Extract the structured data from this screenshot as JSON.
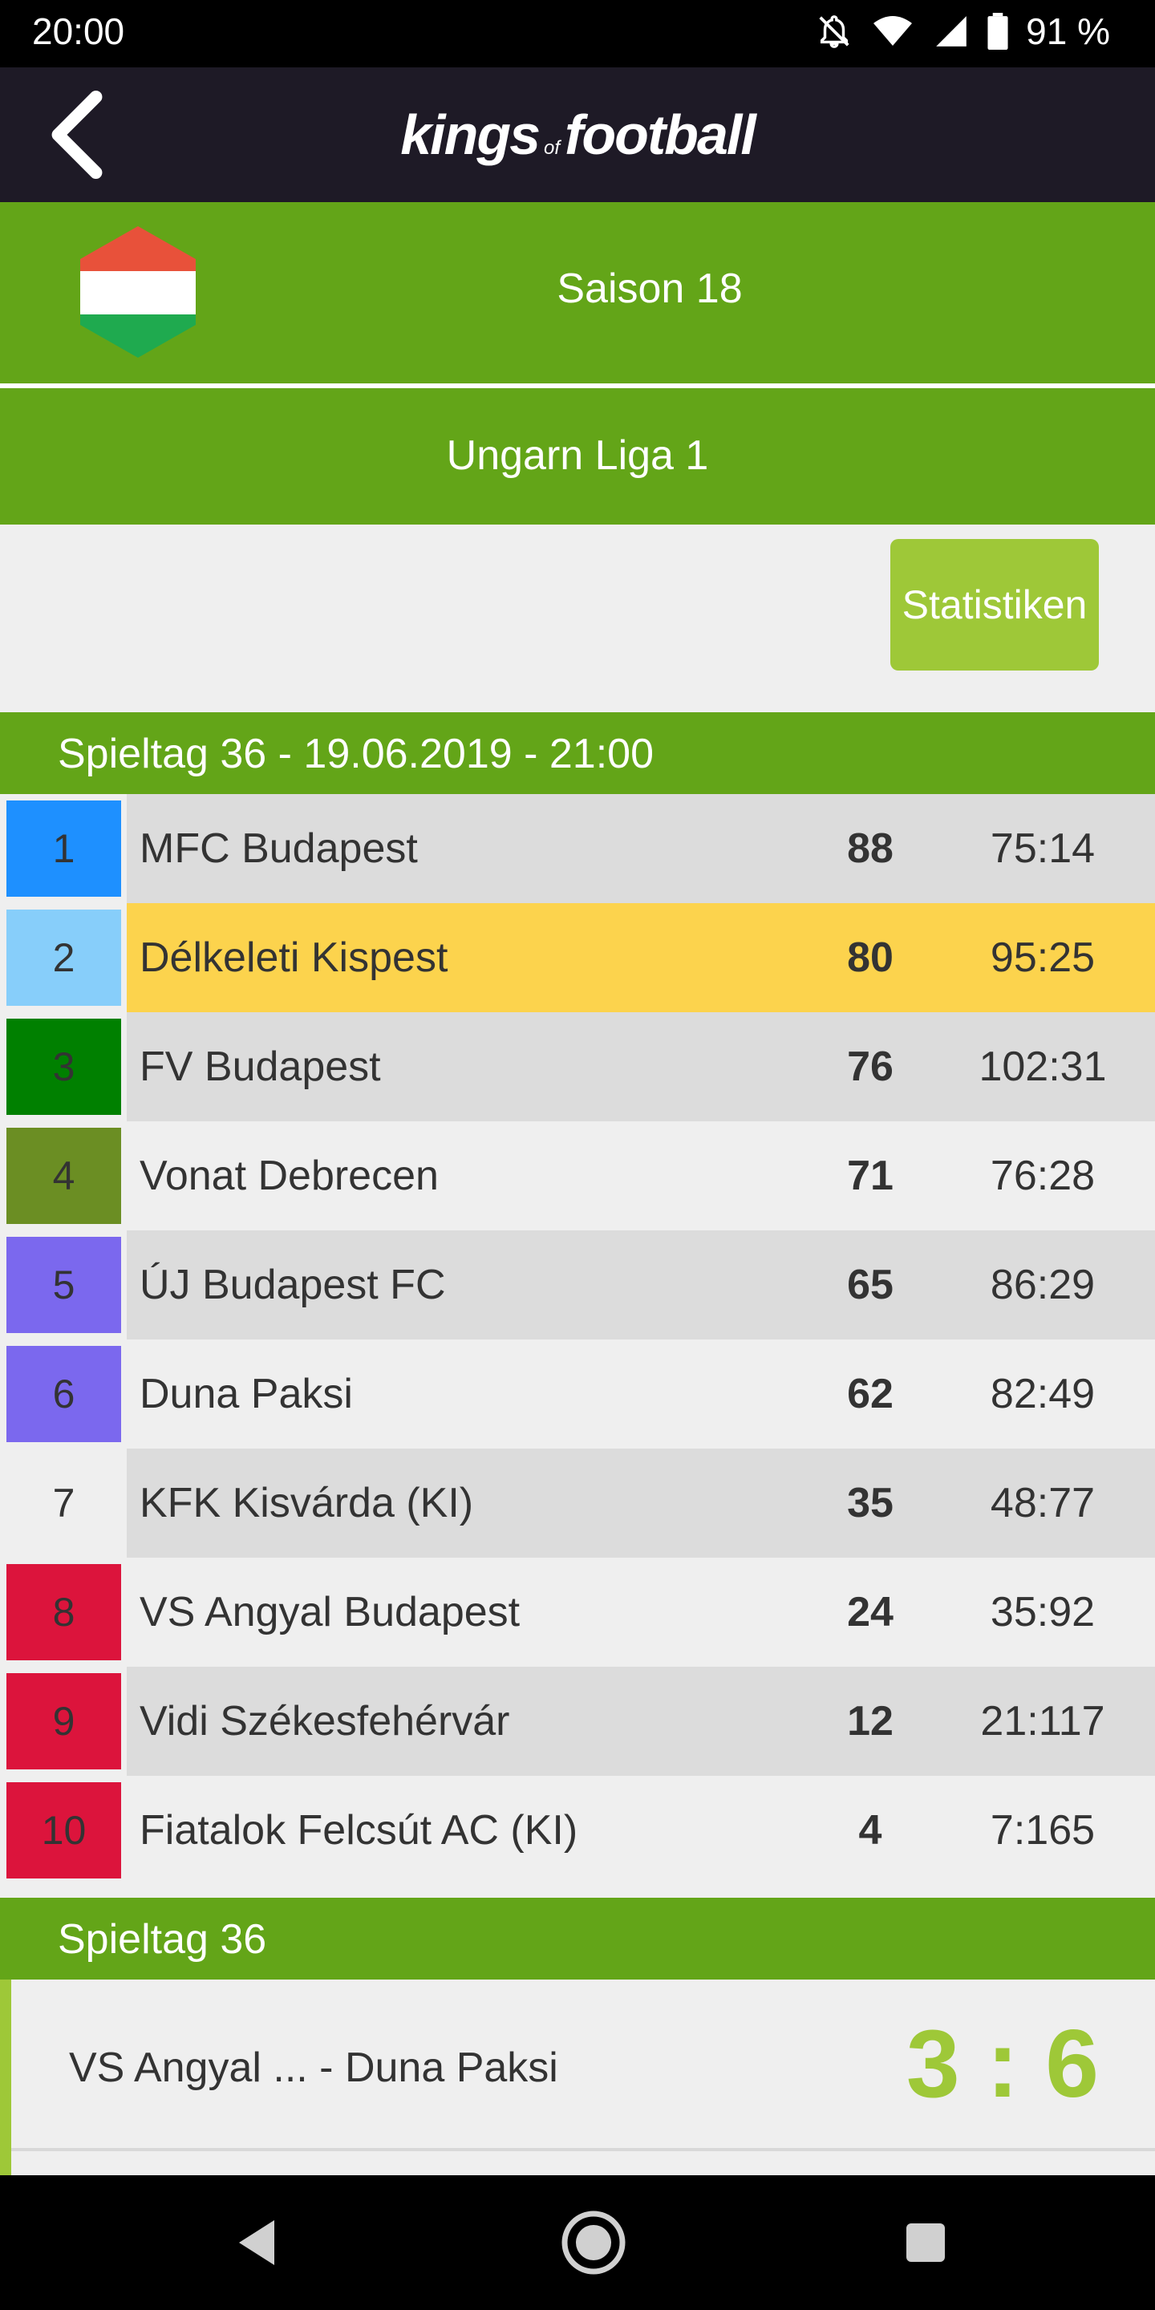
{
  "status_bar": {
    "time": "20:00",
    "battery": "91 %"
  },
  "header": {
    "logo_main": "kings",
    "logo_of": "of",
    "logo_end": "football"
  },
  "season": {
    "label": "Saison 18"
  },
  "league": {
    "label": "Ungarn Liga 1"
  },
  "stats_button": {
    "label": "Statistiken"
  },
  "matchday": {
    "label": "Spieltag 36 - 19.06.2019 - 21:00"
  },
  "colors": {
    "green": "#63a518",
    "light_green": "#9ec838",
    "highlight": "#fcd34d"
  },
  "standings": [
    {
      "rank": "1",
      "team": "MFC Budapest",
      "points": "88",
      "goals": "75:14",
      "rank_color": "#1e90ff",
      "bg": "#dcdcdc"
    },
    {
      "rank": "2",
      "team": "Délkeleti Kispest",
      "points": "80",
      "goals": "95:25",
      "rank_color": "#87cefa",
      "bg": "#fcd34d"
    },
    {
      "rank": "3",
      "team": "FV Budapest",
      "points": "76",
      "goals": "102:31",
      "rank_color": "#008000",
      "bg": "#dcdcdc"
    },
    {
      "rank": "4",
      "team": "Vonat Debrecen",
      "points": "71",
      "goals": "76:28",
      "rank_color": "#6b8e23",
      "bg": "#efefef"
    },
    {
      "rank": "5",
      "team": "ÚJ Budapest FC",
      "points": "65",
      "goals": "86:29",
      "rank_color": "#7b68ee",
      "bg": "#dcdcdc"
    },
    {
      "rank": "6",
      "team": "Duna Paksi",
      "points": "62",
      "goals": "82:49",
      "rank_color": "#7b68ee",
      "bg": "#efefef"
    },
    {
      "rank": "7",
      "team": "KFK Kisvárda (KI)",
      "points": "35",
      "goals": "48:77",
      "rank_color": "#efefef",
      "bg": "#dcdcdc"
    },
    {
      "rank": "8",
      "team": "VS Angyal Budapest",
      "points": "24",
      "goals": "35:92",
      "rank_color": "#dc143c",
      "bg": "#efefef"
    },
    {
      "rank": "9",
      "team": "Vidi Székesfehérvár",
      "points": "12",
      "goals": "21:117",
      "rank_color": "#dc143c",
      "bg": "#dcdcdc"
    },
    {
      "rank": "10",
      "team": "Fiatalok Felcsút AC (KI)",
      "points": "4",
      "goals": "7:165",
      "rank_color": "#dc143c",
      "bg": "#efefef"
    }
  ],
  "matchday2": {
    "label": "Spieltag 36"
  },
  "match": {
    "teams": "VS Angyal ... - Duna Paksi",
    "score": "3 : 6"
  }
}
